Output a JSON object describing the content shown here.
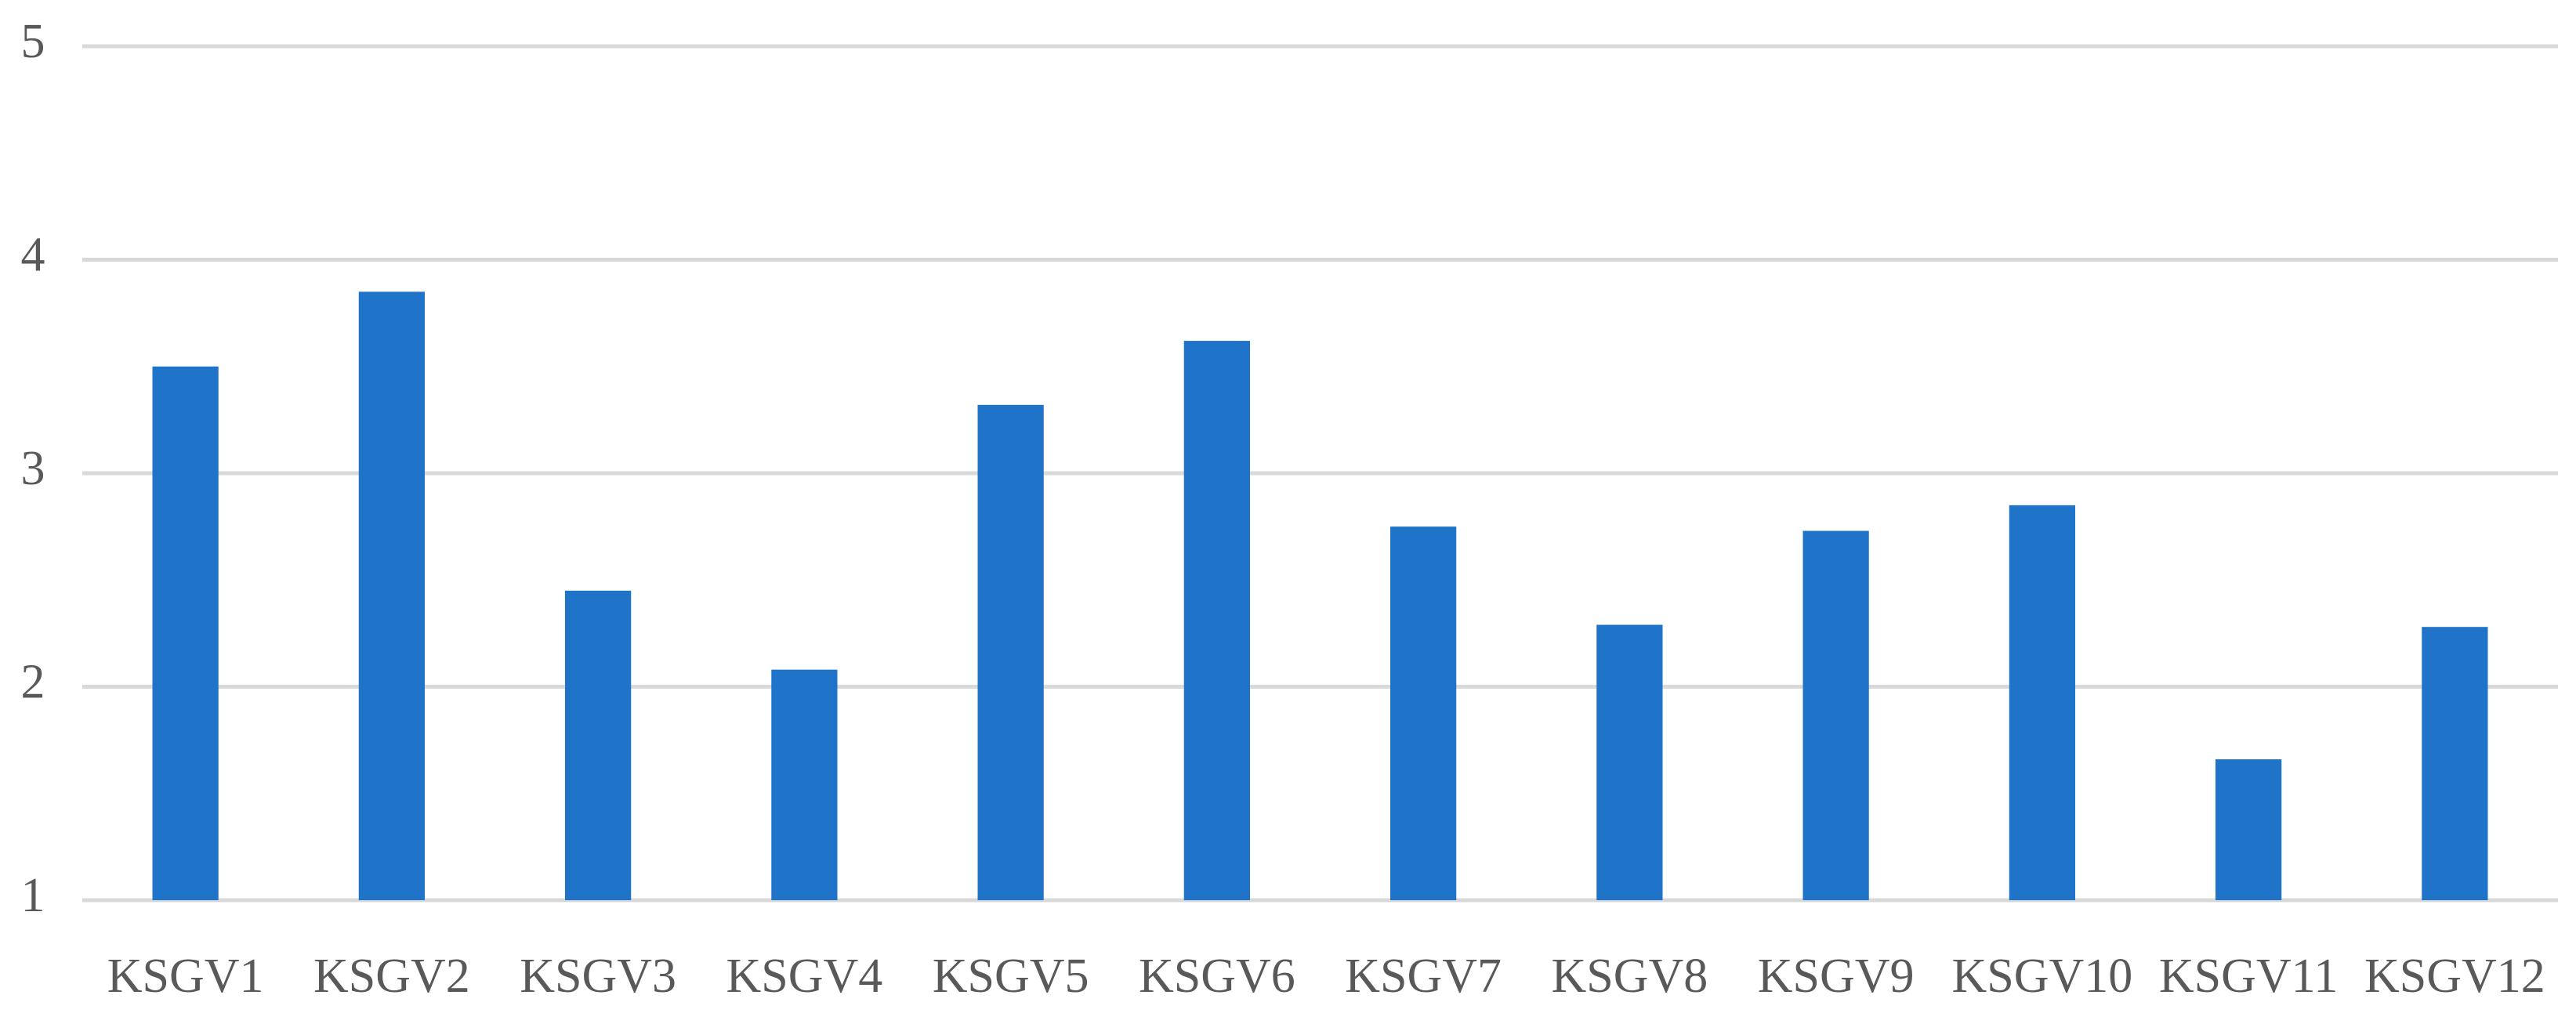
{
  "chart_data": {
    "type": "bar",
    "categories": [
      "KSGV1",
      "KSGV2",
      "KSGV3",
      "KSGV4",
      "KSGV5",
      "KSGV6",
      "KSGV7",
      "KSGV8",
      "KSGV9",
      "KSGV10",
      "KSGV11",
      "KSGV12"
    ],
    "values": [
      3.5,
      3.85,
      2.45,
      2.08,
      3.32,
      3.62,
      2.75,
      2.29,
      2.73,
      2.85,
      1.66,
      2.28
    ],
    "color": "#1f73c8",
    "ylim": [
      1,
      5
    ],
    "yticks": [
      1,
      2,
      3,
      4,
      5
    ],
    "grid": true
  }
}
